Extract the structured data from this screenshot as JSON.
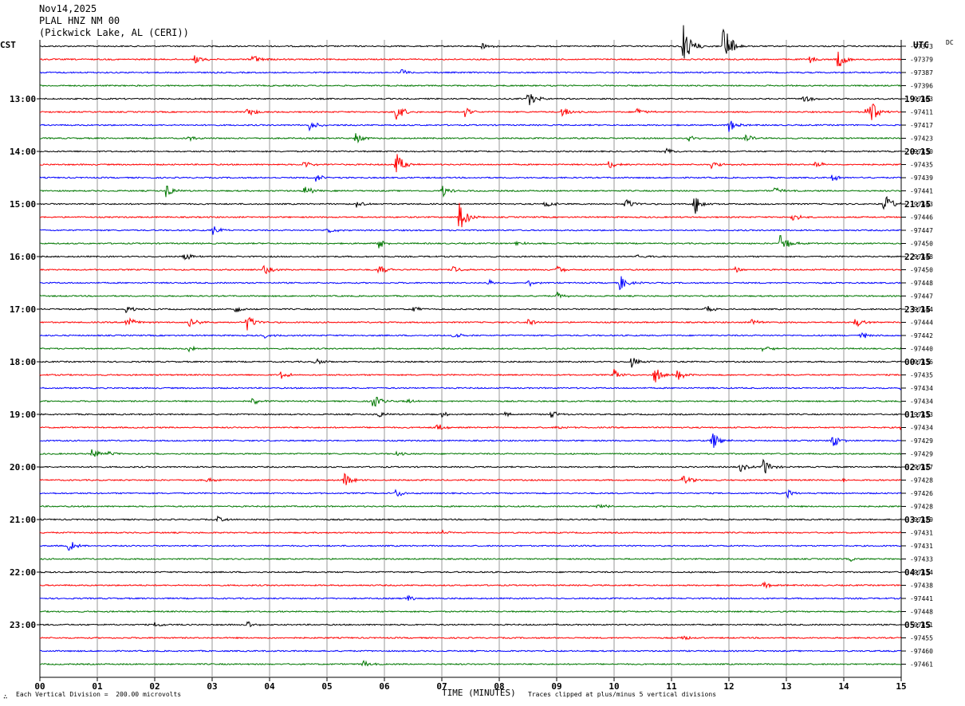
{
  "header": {
    "date": "Nov14,2025",
    "station": "PLAL HNZ NM 00",
    "location": "(Pickwick Lake, AL (CERI))"
  },
  "corners": {
    "left_tz": "CST",
    "right_tz": "UTC",
    "dc_label": "DC"
  },
  "footer": {
    "scale_note": "Each Vertical Division =  200.00 microvolts",
    "clip_note": "Traces clipped at plus/minus 5 vertical divisions",
    "logo_glyph": "∴"
  },
  "colors": {
    "trace_cycle": [
      "#000000",
      "#ff0000",
      "#0000ff",
      "#007700"
    ],
    "grid": "#999999"
  },
  "chart_data": {
    "type": "line",
    "xlabel": "TIME (MINUTES)",
    "xlim": [
      0,
      15
    ],
    "x_ticks": [
      "00",
      "01",
      "02",
      "03",
      "04",
      "05",
      "06",
      "07",
      "08",
      "09",
      "10",
      "11",
      "12",
      "13",
      "14",
      "15"
    ],
    "left_labels": [
      "13:00",
      "14:00",
      "15:00",
      "16:00",
      "17:00",
      "18:00",
      "19:00",
      "20:00",
      "21:00",
      "22:00",
      "23:00"
    ],
    "right_labels": [
      "19:15",
      "20:15",
      "21:15",
      "22:15",
      "23:15",
      "00:15",
      "01:15",
      "02:15",
      "03:15",
      "04:15",
      "05:15"
    ],
    "dc_offsets": [
      -97373,
      -97379,
      -97387,
      -97396,
      -97403,
      -97411,
      -97417,
      -97423,
      -97430,
      -97435,
      -97439,
      -97441,
      -97443,
      -97446,
      -97447,
      -97450,
      -97448,
      -97450,
      -97448,
      -97447,
      -97444,
      -97444,
      -97442,
      -97440,
      -97436,
      -97435,
      -97434,
      -97434,
      -97433,
      -97434,
      -97429,
      -97429,
      -97427,
      -97428,
      -97426,
      -97428,
      -97429,
      -97431,
      -97431,
      -97433,
      -97434,
      -97438,
      -97441,
      -97448,
      -97451,
      -97455,
      -97460,
      -97461
    ],
    "events": [
      {
        "trace": 0,
        "minute": 7.7,
        "amp": 5
      },
      {
        "trace": 0,
        "minute": 11.2,
        "amp": 30
      },
      {
        "trace": 0,
        "minute": 11.9,
        "amp": 35
      },
      {
        "trace": 1,
        "minute": 2.7,
        "amp": 7
      },
      {
        "trace": 1,
        "minute": 3.7,
        "amp": 7
      },
      {
        "trace": 1,
        "minute": 13.4,
        "amp": 5
      },
      {
        "trace": 1,
        "minute": 13.9,
        "amp": 14
      },
      {
        "trace": 2,
        "minute": 6.3,
        "amp": 5
      },
      {
        "trace": 4,
        "minute": 8.5,
        "amp": 12
      },
      {
        "trace": 4,
        "minute": 13.3,
        "amp": 6
      },
      {
        "trace": 5,
        "minute": 3.6,
        "amp": 8
      },
      {
        "trace": 5,
        "minute": 6.2,
        "amp": 14
      },
      {
        "trace": 5,
        "minute": 7.4,
        "amp": 7
      },
      {
        "trace": 5,
        "minute": 9.1,
        "amp": 7
      },
      {
        "trace": 5,
        "minute": 10.4,
        "amp": 6
      },
      {
        "trace": 5,
        "minute": 14.4,
        "amp": 28
      },
      {
        "trace": 6,
        "minute": 4.7,
        "amp": 8
      },
      {
        "trace": 6,
        "minute": 12.0,
        "amp": 9
      },
      {
        "trace": 7,
        "minute": 2.6,
        "amp": 4
      },
      {
        "trace": 7,
        "minute": 5.5,
        "amp": 7
      },
      {
        "trace": 7,
        "minute": 11.3,
        "amp": 5
      },
      {
        "trace": 7,
        "minute": 12.3,
        "amp": 5
      },
      {
        "trace": 8,
        "minute": 10.9,
        "amp": 6
      },
      {
        "trace": 9,
        "minute": 4.6,
        "amp": 6
      },
      {
        "trace": 9,
        "minute": 6.2,
        "amp": 16
      },
      {
        "trace": 9,
        "minute": 9.9,
        "amp": 6
      },
      {
        "trace": 9,
        "minute": 11.7,
        "amp": 6
      },
      {
        "trace": 9,
        "minute": 13.5,
        "amp": 5
      },
      {
        "trace": 10,
        "minute": 4.8,
        "amp": 6
      },
      {
        "trace": 10,
        "minute": 13.8,
        "amp": 5
      },
      {
        "trace": 11,
        "minute": 2.2,
        "amp": 10
      },
      {
        "trace": 11,
        "minute": 4.6,
        "amp": 8
      },
      {
        "trace": 11,
        "minute": 7.0,
        "amp": 8
      },
      {
        "trace": 11,
        "minute": 12.8,
        "amp": 5
      },
      {
        "trace": 12,
        "minute": 5.5,
        "amp": 6
      },
      {
        "trace": 12,
        "minute": 8.8,
        "amp": 6
      },
      {
        "trace": 12,
        "minute": 10.2,
        "amp": 8
      },
      {
        "trace": 12,
        "minute": 11.4,
        "amp": 14
      },
      {
        "trace": 12,
        "minute": 14.7,
        "amp": 16
      },
      {
        "trace": 13,
        "minute": 7.3,
        "amp": 22
      },
      {
        "trace": 13,
        "minute": 13.1,
        "amp": 6
      },
      {
        "trace": 14,
        "minute": 3.0,
        "amp": 7
      },
      {
        "trace": 14,
        "minute": 5.0,
        "amp": 5
      },
      {
        "trace": 15,
        "minute": 5.9,
        "amp": 8
      },
      {
        "trace": 15,
        "minute": 8.3,
        "amp": 4
      },
      {
        "trace": 15,
        "minute": 12.9,
        "amp": 16
      },
      {
        "trace": 16,
        "minute": 2.5,
        "amp": 6
      },
      {
        "trace": 16,
        "minute": 10.4,
        "amp": 4
      },
      {
        "trace": 17,
        "minute": 3.9,
        "amp": 7
      },
      {
        "trace": 17,
        "minute": 5.9,
        "amp": 7
      },
      {
        "trace": 17,
        "minute": 7.2,
        "amp": 5
      },
      {
        "trace": 17,
        "minute": 9.0,
        "amp": 6
      },
      {
        "trace": 17,
        "minute": 12.1,
        "amp": 4
      },
      {
        "trace": 18,
        "minute": 7.8,
        "amp": 4
      },
      {
        "trace": 18,
        "minute": 8.5,
        "amp": 5
      },
      {
        "trace": 18,
        "minute": 10.1,
        "amp": 10
      },
      {
        "trace": 19,
        "minute": 9.0,
        "amp": 5
      },
      {
        "trace": 20,
        "minute": 1.5,
        "amp": 5
      },
      {
        "trace": 20,
        "minute": 3.4,
        "amp": 6
      },
      {
        "trace": 20,
        "minute": 6.5,
        "amp": 4
      },
      {
        "trace": 20,
        "minute": 11.6,
        "amp": 5
      },
      {
        "trace": 21,
        "minute": 1.5,
        "amp": 10
      },
      {
        "trace": 21,
        "minute": 2.6,
        "amp": 8
      },
      {
        "trace": 21,
        "minute": 3.6,
        "amp": 12
      },
      {
        "trace": 21,
        "minute": 8.5,
        "amp": 6
      },
      {
        "trace": 21,
        "minute": 12.4,
        "amp": 5
      },
      {
        "trace": 21,
        "minute": 14.2,
        "amp": 7
      },
      {
        "trace": 22,
        "minute": 3.9,
        "amp": 4
      },
      {
        "trace": 22,
        "minute": 7.2,
        "amp": 5
      },
      {
        "trace": 22,
        "minute": 14.3,
        "amp": 5
      },
      {
        "trace": 23,
        "minute": 2.6,
        "amp": 6
      },
      {
        "trace": 23,
        "minute": 12.6,
        "amp": 6
      },
      {
        "trace": 24,
        "minute": 4.8,
        "amp": 5
      },
      {
        "trace": 24,
        "minute": 10.3,
        "amp": 8
      },
      {
        "trace": 25,
        "minute": 4.2,
        "amp": 5
      },
      {
        "trace": 25,
        "minute": 10.0,
        "amp": 7
      },
      {
        "trace": 25,
        "minute": 10.7,
        "amp": 12
      },
      {
        "trace": 25,
        "minute": 11.1,
        "amp": 7
      },
      {
        "trace": 26,
        "minute": 15.0,
        "amp": 5
      },
      {
        "trace": 27,
        "minute": 3.7,
        "amp": 5
      },
      {
        "trace": 27,
        "minute": 5.8,
        "amp": 10
      },
      {
        "trace": 27,
        "minute": 6.4,
        "amp": 3
      },
      {
        "trace": 28,
        "minute": 5.9,
        "amp": 5
      },
      {
        "trace": 28,
        "minute": 7.0,
        "amp": 3
      },
      {
        "trace": 28,
        "minute": 8.1,
        "amp": 3
      },
      {
        "trace": 28,
        "minute": 8.9,
        "amp": 5
      },
      {
        "trace": 29,
        "minute": 6.9,
        "amp": 6
      },
      {
        "trace": 29,
        "minute": 9.0,
        "amp": 4
      },
      {
        "trace": 29,
        "minute": 15.0,
        "amp": 6
      },
      {
        "trace": 30,
        "minute": 11.7,
        "amp": 14
      },
      {
        "trace": 30,
        "minute": 13.8,
        "amp": 10
      },
      {
        "trace": 31,
        "minute": 0.9,
        "amp": 8
      },
      {
        "trace": 31,
        "minute": 1.2,
        "amp": 4
      },
      {
        "trace": 31,
        "minute": 6.2,
        "amp": 3
      },
      {
        "trace": 32,
        "minute": 12.2,
        "amp": 6
      },
      {
        "trace": 32,
        "minute": 12.6,
        "amp": 12
      },
      {
        "trace": 33,
        "minute": 2.9,
        "amp": 3
      },
      {
        "trace": 33,
        "minute": 5.3,
        "amp": 9
      },
      {
        "trace": 33,
        "minute": 11.2,
        "amp": 8
      },
      {
        "trace": 33,
        "minute": 14.0,
        "amp": 3
      },
      {
        "trace": 34,
        "minute": 6.2,
        "amp": 6
      },
      {
        "trace": 34,
        "minute": 13.0,
        "amp": 6
      },
      {
        "trace": 35,
        "minute": 9.7,
        "amp": 5
      },
      {
        "trace": 36,
        "minute": 3.1,
        "amp": 4
      },
      {
        "trace": 37,
        "minute": 7.0,
        "amp": 4
      },
      {
        "trace": 38,
        "minute": 0.5,
        "amp": 8
      },
      {
        "trace": 39,
        "minute": 14.1,
        "amp": 3
      },
      {
        "trace": 41,
        "minute": 12.6,
        "amp": 5
      },
      {
        "trace": 42,
        "minute": 6.4,
        "amp": 5
      },
      {
        "trace": 44,
        "minute": 2.0,
        "amp": 4
      },
      {
        "trace": 44,
        "minute": 3.6,
        "amp": 5
      },
      {
        "trace": 45,
        "minute": 11.2,
        "amp": 4
      },
      {
        "trace": 47,
        "minute": 5.6,
        "amp": 6
      }
    ]
  }
}
